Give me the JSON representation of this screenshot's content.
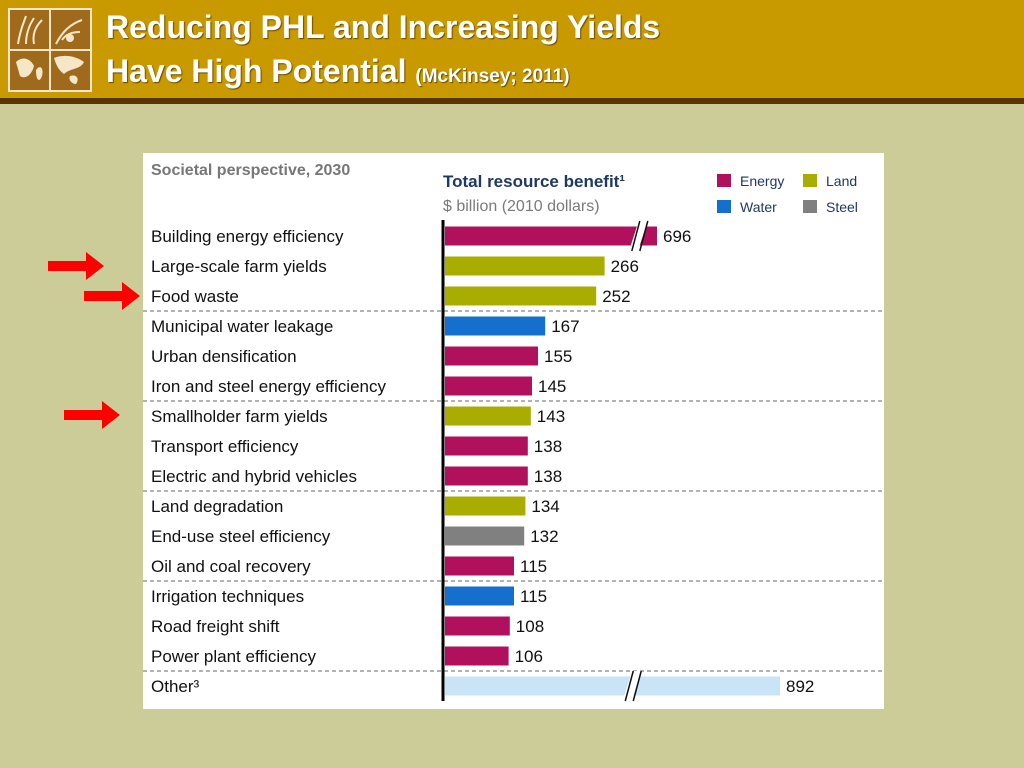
{
  "slide": {
    "title_line1": "Reducing PHL and Increasing Yields",
    "title_line2": "Have High Potential",
    "title_cite": "(McKinsey; 2011)",
    "logo_icon": "agriculture-world-map-logo"
  },
  "colors": {
    "energy": "#b0105c",
    "land": "#a8ad00",
    "water": "#1470cc",
    "steel": "#808080",
    "other": "#c9e3f7",
    "header": "#c99a00",
    "arrow": "#ff0000"
  },
  "chart_data": {
    "type": "bar",
    "orientation": "horizontal",
    "subtitle": "Societal perspective, 2030",
    "title": "Total resource benefit¹",
    "unit_label": "$ billion (2010 dollars)",
    "legend": [
      {
        "name": "Energy",
        "color": "#b0105c"
      },
      {
        "name": "Land",
        "color": "#a8ad00"
      },
      {
        "name": "Water",
        "color": "#1470cc"
      },
      {
        "name": "Steel",
        "color": "#808080"
      }
    ],
    "legend_position": "top-right",
    "categories": [
      "Building energy efficiency",
      "Large-scale farm yields",
      "Food waste",
      "Municipal water leakage",
      "Urban densification",
      "Iron and steel energy efficiency",
      "Smallholder farm yields",
      "Transport efficiency",
      "Electric and hybrid vehicles",
      "Land degradation",
      "End-use steel efficiency",
      "Oil and coal recovery",
      "Irrigation techniques",
      "Road freight shift",
      "Power plant efficiency",
      "Other³"
    ],
    "values": [
      696,
      266,
      252,
      167,
      155,
      145,
      143,
      138,
      138,
      134,
      132,
      115,
      115,
      108,
      106,
      892
    ],
    "resource": [
      "Energy",
      "Land",
      "Land",
      "Water",
      "Energy",
      "Energy",
      "Land",
      "Energy",
      "Energy",
      "Land",
      "Steel",
      "Energy",
      "Water",
      "Energy",
      "Energy",
      "Other"
    ],
    "axis_break": [
      "Building energy efficiency",
      "Other³"
    ],
    "group_separators_after": [
      "Food waste",
      "Iron and steel energy efficiency",
      "Electric and hybrid vehicles",
      "Oil and coal recovery",
      "Power plant efficiency"
    ],
    "highlighted": [
      "Large-scale farm yields",
      "Food waste",
      "Smallholder farm yields"
    ],
    "grid": false
  }
}
